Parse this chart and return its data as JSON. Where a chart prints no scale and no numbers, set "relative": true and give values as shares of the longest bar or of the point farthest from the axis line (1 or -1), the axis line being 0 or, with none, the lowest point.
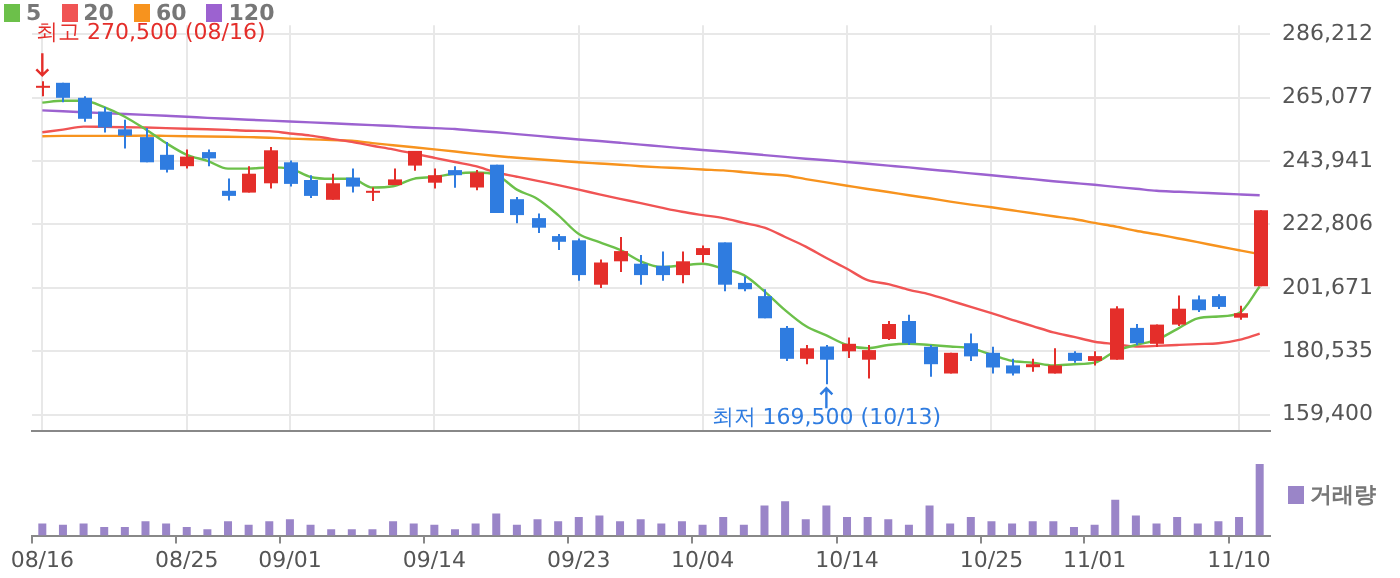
{
  "chart_data": [
    {
      "type": "candlestick",
      "categories": [
        "08/16",
        null,
        null,
        null,
        null,
        null,
        null,
        "08/25",
        null,
        null,
        null,
        null,
        "09/01",
        null,
        null,
        null,
        null,
        null,
        null,
        "09/14",
        null,
        null,
        null,
        null,
        null,
        null,
        "09/23",
        null,
        null,
        null,
        null,
        null,
        "10/04",
        null,
        null,
        null,
        null,
        null,
        null,
        "10/14",
        null,
        null,
        null,
        null,
        null,
        null,
        "10/25",
        null,
        null,
        null,
        null,
        "11/01",
        null,
        null,
        null,
        null,
        null,
        null,
        "11/10",
        null
      ],
      "ohlc": [
        [
          268500,
          270500,
          265500,
          269000
        ],
        [
          270000,
          270000,
          263500,
          265000
        ],
        [
          265000,
          265500,
          257000,
          258000
        ],
        [
          260400,
          261900,
          253400,
          255100
        ],
        [
          254500,
          257700,
          248100,
          252400
        ],
        [
          251900,
          254900,
          243500,
          243500
        ],
        [
          246000,
          250300,
          240100,
          241000
        ],
        [
          242200,
          247800,
          241400,
          245400
        ],
        [
          246900,
          247800,
          242200,
          244800
        ],
        [
          234000,
          238100,
          230800,
          232300
        ],
        [
          233400,
          242200,
          233400,
          239700
        ],
        [
          236500,
          248600,
          234800,
          247500
        ],
        [
          243500,
          244100,
          235400,
          236300
        ],
        [
          237600,
          239200,
          231600,
          232300
        ],
        [
          231000,
          239700,
          231000,
          236500
        ],
        [
          238400,
          241400,
          233400,
          235400
        ],
        [
          233400,
          235100,
          230600,
          234000
        ],
        [
          235900,
          241400,
          235900,
          237800
        ],
        [
          242400,
          247300,
          240700,
          247300
        ],
        [
          236700,
          241400,
          234800,
          239200
        ],
        [
          240900,
          242200,
          235000,
          239200
        ],
        [
          235100,
          240900,
          234200,
          240100
        ],
        [
          242700,
          242700,
          226600,
          226600
        ],
        [
          231200,
          231900,
          223200,
          225900
        ],
        [
          224900,
          226400,
          219900,
          221700
        ],
        [
          218900,
          219600,
          214300,
          217000
        ],
        [
          217500,
          218100,
          204000,
          205900
        ],
        [
          202700,
          211100,
          201600,
          210100
        ],
        [
          210500,
          218600,
          206900,
          213900
        ],
        [
          209700,
          212600,
          202700,
          205900
        ],
        [
          209000,
          213800,
          204000,
          205900
        ],
        [
          205900,
          213800,
          203200,
          210500
        ],
        [
          212600,
          215800,
          210100,
          214900
        ],
        [
          216800,
          216800,
          200500,
          202700
        ],
        [
          203300,
          205400,
          200500,
          201200
        ],
        [
          198900,
          201200,
          191500,
          191500
        ],
        [
          188300,
          188900,
          177300,
          178000
        ],
        [
          178000,
          182600,
          176200,
          181500
        ],
        [
          182100,
          182600,
          169500,
          177700
        ],
        [
          180500,
          185100,
          178300,
          183000
        ],
        [
          177700,
          182600,
          171400,
          180900
        ],
        [
          184600,
          190600,
          184300,
          189600
        ],
        [
          190600,
          192700,
          182600,
          183200
        ],
        [
          182000,
          182600,
          172000,
          176200
        ],
        [
          173100,
          180000,
          173100,
          180000
        ],
        [
          183200,
          186400,
          177300,
          178800
        ],
        [
          180000,
          182000,
          173100,
          175100
        ],
        [
          175800,
          178000,
          172400,
          173100
        ],
        [
          175200,
          178000,
          173700,
          176200
        ],
        [
          173100,
          181500,
          173100,
          175800
        ],
        [
          180000,
          180500,
          176700,
          177300
        ],
        [
          177300,
          180500,
          175800,
          178900
        ],
        [
          177700,
          195500,
          177700,
          194800
        ],
        [
          188300,
          189600,
          182600,
          183200
        ],
        [
          183000,
          189400,
          181900,
          189400
        ],
        [
          189400,
          199100,
          188900,
          194700
        ],
        [
          197800,
          199100,
          193600,
          194200
        ],
        [
          198900,
          199500,
          194600,
          195300
        ],
        [
          191700,
          195700,
          191000,
          193200
        ],
        [
          202200,
          227500,
          202200,
          227500
        ]
      ],
      "colors": [
        "#e42e2a",
        "#2f7ce0",
        "#2f7ce0",
        "#2f7ce0",
        "#2f7ce0",
        "#2f7ce0",
        "#2f7ce0",
        "#e42e2a",
        "#2f7ce0",
        "#2f7ce0",
        "#e42e2a",
        "#e42e2a",
        "#2f7ce0",
        "#2f7ce0",
        "#e42e2a",
        "#2f7ce0",
        "#e42e2a",
        "#e42e2a",
        "#e42e2a",
        "#e42e2a",
        "#2f7ce0",
        "#e42e2a",
        "#2f7ce0",
        "#2f7ce0",
        "#2f7ce0",
        "#2f7ce0",
        "#2f7ce0",
        "#e42e2a",
        "#e42e2a",
        "#2f7ce0",
        "#2f7ce0",
        "#e42e2a",
        "#e42e2a",
        "#2f7ce0",
        "#2f7ce0",
        "#2f7ce0",
        "#2f7ce0",
        "#e42e2a",
        "#2f7ce0",
        "#e42e2a",
        "#e42e2a",
        "#e42e2a",
        "#2f7ce0",
        "#2f7ce0",
        "#e42e2a",
        "#2f7ce0",
        "#2f7ce0",
        "#2f7ce0",
        "#e42e2a",
        "#e42e2a",
        "#2f7ce0",
        "#e42e2a",
        "#e42e2a",
        "#2f7ce0",
        "#e42e2a",
        "#e42e2a",
        "#2f7ce0",
        "#2f7ce0",
        "#e42e2a",
        "#e42e2a"
      ],
      "series": [
        {
          "name": "5",
          "type": "line",
          "color": "#6cc04a",
          "values": [
            263400,
            264000,
            264000,
            261900,
            258700,
            254500,
            249900,
            246000,
            244000,
            241400,
            241400,
            241800,
            241400,
            238600,
            238000,
            238000,
            235100,
            235500,
            238000,
            238600,
            239700,
            240100,
            239300,
            234400,
            231300,
            225900,
            219600,
            216900,
            214300,
            210500,
            208600,
            209100,
            209700,
            208000,
            205900,
            200500,
            194200,
            188900,
            185800,
            182600,
            181500,
            182600,
            183000,
            182600,
            182100,
            181500,
            179400,
            177300,
            176700,
            175800,
            176200,
            176700,
            180500,
            182600,
            184300,
            187900,
            191500,
            192100,
            193200,
            202100
          ]
        },
        {
          "name": "20",
          "type": "line",
          "color": "#f05454",
          "values": [
            253500,
            254400,
            255400,
            255300,
            255200,
            255100,
            254900,
            254700,
            254500,
            254300,
            254000,
            253900,
            253100,
            252400,
            251300,
            250300,
            249000,
            247800,
            246400,
            245000,
            243600,
            242200,
            240100,
            238700,
            237300,
            235900,
            234400,
            232800,
            231300,
            229900,
            228400,
            227000,
            225900,
            224900,
            223300,
            221700,
            218600,
            215400,
            211600,
            208000,
            204200,
            202900,
            201000,
            199500,
            197400,
            195300,
            193200,
            191000,
            188900,
            186800,
            185300,
            183700,
            182900,
            182100,
            182300,
            182600,
            182900,
            183200,
            184300,
            186400
          ]
        },
        {
          "name": "60",
          "type": "line",
          "color": "#f7931e",
          "values": [
            252200,
            252300,
            252300,
            252300,
            252300,
            252400,
            252300,
            252200,
            252100,
            252000,
            251900,
            251700,
            251400,
            251200,
            250900,
            250700,
            249900,
            249200,
            248500,
            247800,
            247100,
            246300,
            245600,
            245000,
            244500,
            244000,
            243500,
            243100,
            242700,
            242200,
            241800,
            241500,
            241100,
            240800,
            240200,
            239600,
            239100,
            237900,
            236800,
            235700,
            234600,
            233600,
            232500,
            231500,
            230400,
            229400,
            228500,
            227500,
            226500,
            225500,
            224600,
            223300,
            222100,
            220700,
            219500,
            218200,
            216900,
            215500,
            214200,
            212900
          ]
        },
        {
          "name": "120",
          "type": "line",
          "color": "#9c62d0",
          "values": [
            260800,
            260500,
            260200,
            259900,
            259600,
            259300,
            259000,
            258700,
            258300,
            258000,
            257700,
            257400,
            257100,
            256800,
            256500,
            256200,
            255900,
            255600,
            255200,
            254900,
            254600,
            254000,
            253500,
            252900,
            252300,
            251700,
            251100,
            250600,
            250000,
            249400,
            248800,
            248200,
            247600,
            247100,
            246500,
            245900,
            245300,
            244700,
            244200,
            243600,
            243000,
            242400,
            241800,
            241100,
            240500,
            239800,
            239200,
            238500,
            237900,
            237200,
            236600,
            236000,
            235300,
            234700,
            234000,
            233700,
            233400,
            233100,
            232800,
            232500
          ]
        }
      ],
      "ylim": [
        154000,
        289200
      ],
      "yticks": [
        {
          "value": 159400,
          "label": "159,400"
        },
        {
          "value": 180535,
          "label": "180,535"
        },
        {
          "value": 201671,
          "label": "201,671"
        },
        {
          "value": 222806,
          "label": "222,806"
        },
        {
          "value": 243941,
          "label": "243,941"
        },
        {
          "value": 265077,
          "label": "265,077"
        },
        {
          "value": 286212,
          "label": "286,212"
        }
      ],
      "grid": true,
      "legend": "top left",
      "tick_labels": "y",
      "annotations": [
        {
          "text": "최고 270,500 (08/16)",
          "x": "08/16",
          "y": 270500
        },
        {
          "text": "최저 169,500 (10/13)",
          "y": 169500
        }
      ]
    },
    {
      "type": "bar",
      "relative": true,
      "categories": [
        "08/16",
        null,
        null,
        null,
        null,
        null,
        null,
        "08/25",
        null,
        null,
        null,
        null,
        "09/01",
        null,
        null,
        null,
        null,
        null,
        null,
        "09/14",
        null,
        null,
        null,
        null,
        null,
        null,
        "09/23",
        null,
        null,
        null,
        null,
        null,
        "10/04",
        null,
        null,
        null,
        null,
        null,
        null,
        "10/14",
        null,
        null,
        null,
        null,
        null,
        null,
        "10/25",
        null,
        null,
        null,
        null,
        "11/01",
        null,
        null,
        null,
        null,
        null,
        null,
        "11/10",
        null
      ],
      "series": [
        {
          "name": "거래량",
          "color": "#9a85c8",
          "values": [
            0.17,
            0.15,
            0.17,
            0.12,
            0.12,
            0.2,
            0.17,
            0.12,
            0.09,
            0.2,
            0.15,
            0.2,
            0.23,
            0.15,
            0.09,
            0.09,
            0.09,
            0.2,
            0.17,
            0.15,
            0.09,
            0.17,
            0.31,
            0.15,
            0.23,
            0.2,
            0.26,
            0.28,
            0.2,
            0.23,
            0.17,
            0.2,
            0.15,
            0.26,
            0.15,
            0.42,
            0.48,
            0.23,
            0.42,
            0.26,
            0.26,
            0.23,
            0.15,
            0.42,
            0.17,
            0.26,
            0.2,
            0.17,
            0.2,
            0.2,
            0.12,
            0.15,
            0.5,
            0.28,
            0.17,
            0.26,
            0.17,
            0.2,
            0.26,
            1
          ]
        }
      ],
      "legend": "top right",
      "tick_labels": "x"
    }
  ]
}
